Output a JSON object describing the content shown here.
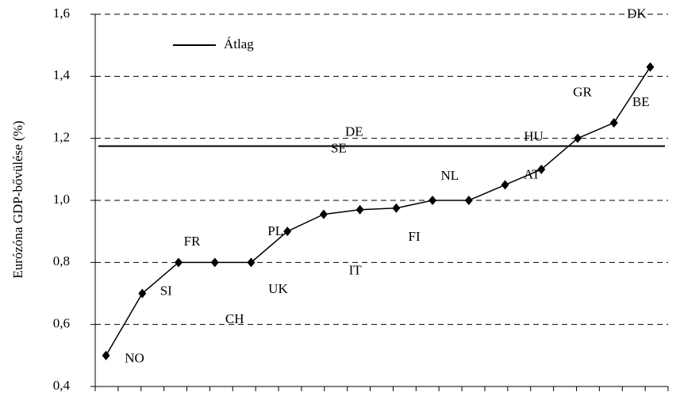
{
  "chart_data": {
    "type": "line",
    "y_label": "Eurózóna GDP-bővülése (%)",
    "categories": [
      "NO",
      "SI",
      "FR",
      "CH",
      "UK",
      "PL",
      "SE",
      "IT",
      "DE",
      "FI",
      "NL",
      "HU",
      "AT",
      "GR",
      "BE",
      "DK"
    ],
    "values": [
      0.5,
      0.7,
      0.8,
      0.8,
      0.8,
      0.9,
      0.955,
      0.97,
      0.975,
      1.0,
      1.0,
      1.05,
      1.1,
      1.2,
      1.25,
      1.43
    ],
    "color": "#000000",
    "average_line": {
      "name": "Átlag",
      "value": 1.175
    },
    "ylim": [
      0.4,
      1.6
    ],
    "yticks": [
      {
        "value": 0.4,
        "label": "0,4"
      },
      {
        "value": 0.6,
        "label": "0,6"
      },
      {
        "value": 0.8,
        "label": "0,8"
      },
      {
        "value": 1.0,
        "label": "1,0"
      },
      {
        "value": 1.2,
        "label": "1,2"
      },
      {
        "value": 1.4,
        "label": "1,4"
      },
      {
        "value": 1.6,
        "label": "1,6"
      }
    ],
    "grid": true
  }
}
